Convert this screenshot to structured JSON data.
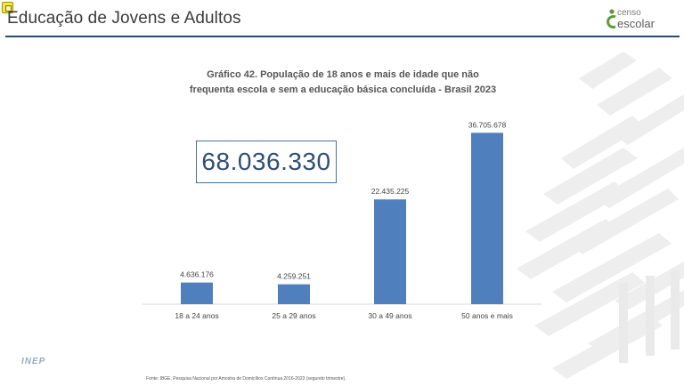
{
  "header": {
    "title": "Educação de Jovens e Adultos",
    "brand_line1": "censo",
    "brand_line2": "escolar"
  },
  "total": {
    "value": "68.036.330"
  },
  "footer": {
    "logo_text": "INEP",
    "source": "Fonte: IBGE, Pesquisa Nacional por Amostra de Domicílios Contínua 2016-2023 (segundo trimestre)."
  },
  "colors": {
    "bar": "#4f80bd",
    "header_rule": "#2d4a6b",
    "accent_green": "#5a9b3c",
    "total_text": "#2e4e76"
  },
  "chart_data": {
    "type": "bar",
    "title_line1": "Gráfico 42. População de 18 anos e mais de idade que não",
    "title_line2": "frequenta escola e sem a educação básica concluída - Brasil 2023",
    "categories": [
      "18 a 24 anos",
      "25 a 29 anos",
      "30 a 49 anos",
      "50 anos e mais"
    ],
    "values": [
      4636176,
      4259251,
      22435225,
      36705678
    ],
    "value_labels": [
      "4.636.176",
      "4.259.251",
      "22.435.225",
      "36.705.678"
    ],
    "xlabel": "",
    "ylabel": "",
    "ylim": [
      0,
      40000000
    ],
    "grid": false,
    "legend": "none"
  }
}
